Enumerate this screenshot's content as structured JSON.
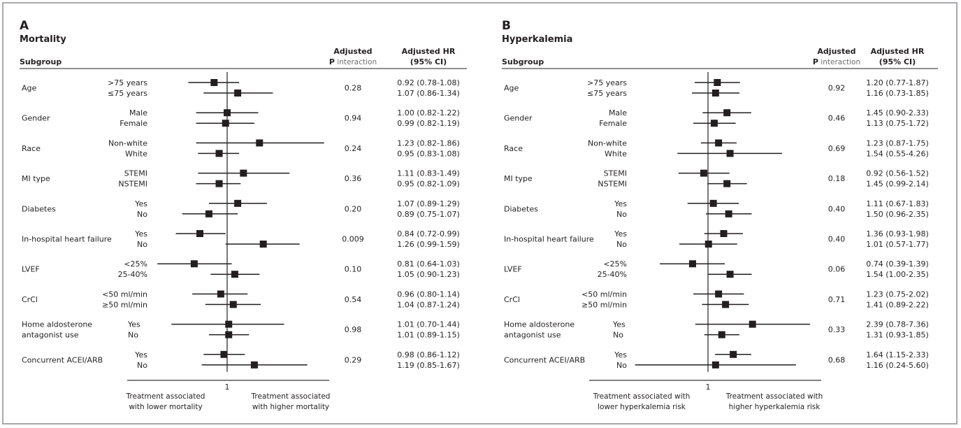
{
  "chart_data": [
    {
      "type": "forest",
      "panel": "A",
      "title": "Mortality",
      "header": {
        "subgroup": "Subgroup",
        "p_line1": "Adjusted",
        "p_line2_bold": "P",
        "p_line2_light": " interaction",
        "hr_line1": "Adjusted HR",
        "hr_line2": "(95% CI)"
      },
      "reference_label": "1",
      "xlim": [
        0.5,
        2.0
      ],
      "footer_left": [
        "Treatment associated",
        "with lower mortality"
      ],
      "footer_right": [
        "Treatment associated",
        "with higher mortality"
      ],
      "groups": [
        {
          "name": [
            "Age"
          ],
          "p": "0.28",
          "rows": [
            {
              "label": ">75 years",
              "hr": 0.92,
              "lo": 0.78,
              "hi": 1.08,
              "text": "0.92 (0.78-1.08)"
            },
            {
              "label": "≤75 years",
              "hr": 1.07,
              "lo": 0.86,
              "hi": 1.34,
              "text": "1.07 (0.86-1.34)"
            }
          ]
        },
        {
          "name": [
            "Gender"
          ],
          "p": "0.94",
          "rows": [
            {
              "label": "Male",
              "hr": 1.0,
              "lo": 0.82,
              "hi": 1.22,
              "text": "1.00 (0.82-1.22)"
            },
            {
              "label": "Female",
              "hr": 0.99,
              "lo": 0.82,
              "hi": 1.19,
              "text": "0.99 (0.82-1.19)"
            }
          ]
        },
        {
          "name": [
            "Race"
          ],
          "p": "0.24",
          "rows": [
            {
              "label": "Non-white",
              "hr": 1.23,
              "lo": 0.82,
              "hi": 1.86,
              "text": "1.23 (0.82-1.86)"
            },
            {
              "label": "White",
              "hr": 0.95,
              "lo": 0.83,
              "hi": 1.08,
              "text": "0.95 (0.83-1.08)"
            }
          ]
        },
        {
          "name": [
            "MI type"
          ],
          "p": "0.36",
          "rows": [
            {
              "label": "STEMI",
              "hr": 1.11,
              "lo": 0.83,
              "hi": 1.49,
              "text": "1.11 (0.83-1.49)"
            },
            {
              "label": "NSTEMI",
              "hr": 0.95,
              "lo": 0.82,
              "hi": 1.09,
              "text": "0.95 (0.82-1.09)"
            }
          ]
        },
        {
          "name": [
            "Diabetes"
          ],
          "p": "0.20",
          "rows": [
            {
              "label": "Yes",
              "hr": 1.07,
              "lo": 0.89,
              "hi": 1.29,
              "text": "1.07 (0.89-1.29)"
            },
            {
              "label": "No",
              "hr": 0.89,
              "lo": 0.75,
              "hi": 1.07,
              "text": "0.89 (0.75-1.07)"
            }
          ]
        },
        {
          "name": [
            "In-hospital heart failure"
          ],
          "p": "0.009",
          "rows": [
            {
              "label": "Yes",
              "hr": 0.84,
              "lo": 0.72,
              "hi": 0.99,
              "text": "0.84 (0.72-0.99)"
            },
            {
              "label": "No",
              "hr": 1.26,
              "lo": 0.99,
              "hi": 1.59,
              "text": "1.26 (0.99-1.59)"
            }
          ]
        },
        {
          "name": [
            "LVEF"
          ],
          "p": "0.10",
          "rows": [
            {
              "label": "<25%",
              "hr": 0.81,
              "lo": 0.64,
              "hi": 1.03,
              "text": "0.81 (0.64-1.03)"
            },
            {
              "label": "25-40%",
              "hr": 1.05,
              "lo": 0.9,
              "hi": 1.23,
              "text": "1.05 (0.90-1.23)"
            }
          ]
        },
        {
          "name": [
            "CrCl"
          ],
          "p": "0.54",
          "rows": [
            {
              "label": "<50 ml/min",
              "hr": 0.96,
              "lo": 0.8,
              "hi": 1.14,
              "text": "0.96 (0.80-1.14)"
            },
            {
              "label": "≥50 ml/min",
              "hr": 1.04,
              "lo": 0.87,
              "hi": 1.24,
              "text": "1.04 (0.87-1.24)"
            }
          ]
        },
        {
          "name": [
            "Home aldosterone",
            "antagonist use"
          ],
          "p": "0.98",
          "rows": [
            {
              "label": "Yes",
              "hr": 1.01,
              "lo": 0.7,
              "hi": 1.44,
              "text": "1.01 (0.70-1.44)"
            },
            {
              "label": "No",
              "hr": 1.01,
              "lo": 0.89,
              "hi": 1.15,
              "text": "1.01 (0.89-1.15)"
            }
          ]
        },
        {
          "name": [
            "Concurrent ACEI/ARB"
          ],
          "p": "0.29",
          "rows": [
            {
              "label": "Yes",
              "hr": 0.98,
              "lo": 0.86,
              "hi": 1.12,
              "text": "0.98 (0.86-1.12)"
            },
            {
              "label": "No",
              "hr": 1.19,
              "lo": 0.85,
              "hi": 1.67,
              "text": "1.19 (0.85-1.67)"
            }
          ]
        }
      ]
    },
    {
      "type": "forest",
      "panel": "B",
      "title": "Hyperkalemia",
      "header": {
        "subgroup": "Subgroup",
        "p_line1": "Adjusted",
        "p_line2_bold": "P",
        "p_line2_light": " interaction",
        "hr_line1": "Adjusted HR",
        "hr_line2": "(95% CI)"
      },
      "reference_label": "1",
      "xlim": [
        0.2,
        8.0
      ],
      "footer_left": [
        "Treatment associated with",
        "lower hyperkalemia risk"
      ],
      "footer_right": [
        "Treatment associated with",
        "higher hyperkalemia risk"
      ],
      "groups": [
        {
          "name": [
            "Age"
          ],
          "p": "0.92",
          "rows": [
            {
              "label": ">75 years",
              "hr": 1.2,
              "lo": 0.77,
              "hi": 1.87,
              "text": "1.20 (0.77-1.87)"
            },
            {
              "label": "≤75 years",
              "hr": 1.16,
              "lo": 0.73,
              "hi": 1.85,
              "text": "1.16 (0.73-1.85)"
            }
          ]
        },
        {
          "name": [
            "Gender"
          ],
          "p": "0.46",
          "rows": [
            {
              "label": "Male",
              "hr": 1.45,
              "lo": 0.9,
              "hi": 2.33,
              "text": "1.45 (0.90-2.33)"
            },
            {
              "label": "Female",
              "hr": 1.13,
              "lo": 0.75,
              "hi": 1.72,
              "text": "1.13 (0.75-1.72)"
            }
          ]
        },
        {
          "name": [
            "Race"
          ],
          "p": "0.69",
          "rows": [
            {
              "label": "Non-white",
              "hr": 1.23,
              "lo": 0.87,
              "hi": 1.75,
              "text": "1.23 (0.87-1.75)"
            },
            {
              "label": "White",
              "hr": 1.54,
              "lo": 0.55,
              "hi": 4.26,
              "text": "1.54 (0.55-4.26)"
            }
          ]
        },
        {
          "name": [
            "MI type"
          ],
          "p": "0.18",
          "rows": [
            {
              "label": "STEMI",
              "hr": 0.92,
              "lo": 0.56,
              "hi": 1.52,
              "text": "0.92 (0.56-1.52)"
            },
            {
              "label": "NSTEMI",
              "hr": 1.45,
              "lo": 0.99,
              "hi": 2.14,
              "text": "1.45 (0.99-2.14)"
            }
          ]
        },
        {
          "name": [
            "Diabetes"
          ],
          "p": "0.40",
          "rows": [
            {
              "label": "Yes",
              "hr": 1.11,
              "lo": 0.67,
              "hi": 1.83,
              "text": "1.11 (0.67-1.83)"
            },
            {
              "label": "No",
              "hr": 1.5,
              "lo": 0.96,
              "hi": 2.35,
              "text": "1.50 (0.96-2.35)"
            }
          ]
        },
        {
          "name": [
            "In-hospital heart failure"
          ],
          "p": "0.40",
          "rows": [
            {
              "label": "Yes",
              "hr": 1.36,
              "lo": 0.93,
              "hi": 1.98,
              "text": "1.36 (0.93-1.98)"
            },
            {
              "label": "No",
              "hr": 1.01,
              "lo": 0.57,
              "hi": 1.77,
              "text": "1.01 (0.57-1.77)"
            }
          ]
        },
        {
          "name": [
            "LVEF"
          ],
          "p": "0.06",
          "rows": [
            {
              "label": "<25%",
              "hr": 0.74,
              "lo": 0.39,
              "hi": 1.39,
              "text": "0.74 (0.39-1.39)"
            },
            {
              "label": "25-40%",
              "hr": 1.54,
              "lo": 1.0,
              "hi": 2.35,
              "text": "1.54 (1.00-2.35)"
            }
          ]
        },
        {
          "name": [
            "CrCl"
          ],
          "p": "0.71",
          "rows": [
            {
              "label": "<50 ml/min",
              "hr": 1.23,
              "lo": 0.75,
              "hi": 2.02,
              "text": "1.23 (0.75-2.02)"
            },
            {
              "label": "≥50 ml/min",
              "hr": 1.41,
              "lo": 0.89,
              "hi": 2.22,
              "text": "1.41 (0.89-2.22)"
            }
          ]
        },
        {
          "name": [
            "Home aldosterone",
            "antagonist use"
          ],
          "p": "0.33",
          "rows": [
            {
              "label": "Yes",
              "hr": 2.39,
              "lo": 0.78,
              "hi": 7.36,
              "text": "2.39 (0.78-7.36)"
            },
            {
              "label": "No",
              "hr": 1.31,
              "lo": 0.93,
              "hi": 1.85,
              "text": "1.31 (0.93-1.85)"
            }
          ]
        },
        {
          "name": [
            "Concurrent ACEI/ARB"
          ],
          "p": "0.68",
          "rows": [
            {
              "label": "Yes",
              "hr": 1.64,
              "lo": 1.15,
              "hi": 2.33,
              "text": "1.64 (1.15-2.33)"
            },
            {
              "label": "No",
              "hr": 1.16,
              "lo": 0.24,
              "hi": 5.6,
              "text": "1.16 (0.24-5.60)"
            }
          ]
        }
      ]
    }
  ]
}
